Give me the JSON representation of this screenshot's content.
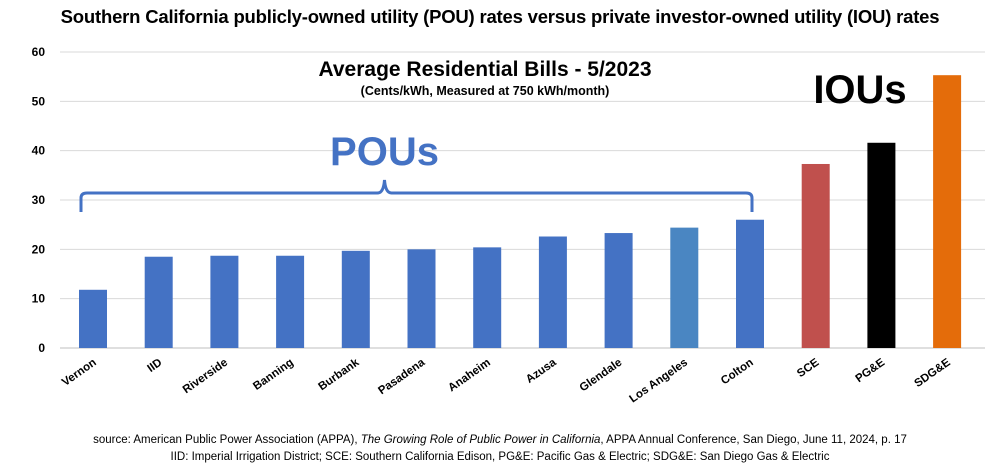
{
  "page": {
    "headline": "Southern California publicly-owned utility (POU) rates versus private investor-owned utility (IOU) rates"
  },
  "chart_data": {
    "type": "bar",
    "title": "Average Residential Bills - 5/2023",
    "subtitle": "(Cents/kWh, Measured at 750 kWh/month)",
    "xlabel": "",
    "ylabel": "",
    "ylim": [
      0,
      60
    ],
    "yticks": [
      "0",
      "10",
      "20",
      "30",
      "40",
      "50",
      "60"
    ],
    "grid": "horizontal",
    "categories": [
      "Vernon",
      "IID",
      "Riverside",
      "Banning",
      "Burbank",
      "Pasadena",
      "Anaheim",
      "Azusa",
      "Glendale",
      "Los Angeles",
      "Colton",
      "SCE",
      "PG&E",
      "SDG&E"
    ],
    "values": [
      11.8,
      18.5,
      18.7,
      18.7,
      19.7,
      20.0,
      20.4,
      22.6,
      23.3,
      24.4,
      26.0,
      37.3,
      41.6,
      55.3
    ],
    "colors": [
      "#4472c4",
      "#4472c4",
      "#4472c4",
      "#4472c4",
      "#4472c4",
      "#4472c4",
      "#4472c4",
      "#4472c4",
      "#4472c4",
      "#4a86c2",
      "#4472c4",
      "#c0504d",
      "#000000",
      "#e46c0a"
    ],
    "annotations": {
      "pou_label": "POUs",
      "iou_label": "IOUs",
      "pou_color": "#4472c4"
    }
  },
  "footer": {
    "source_prefix": "source: American Public Power Association (APPA), ",
    "source_title": "The Growing Role of Public Power in California",
    "source_suffix": ", APPA Annual Conference, San Diego, June 11, 2024, p. 17",
    "glossary": "IID: Imperial Irrigation District; SCE: Southern California Edison, PG&E: Pacific Gas & Electric; SDG&E: San Diego Gas & Electric"
  }
}
